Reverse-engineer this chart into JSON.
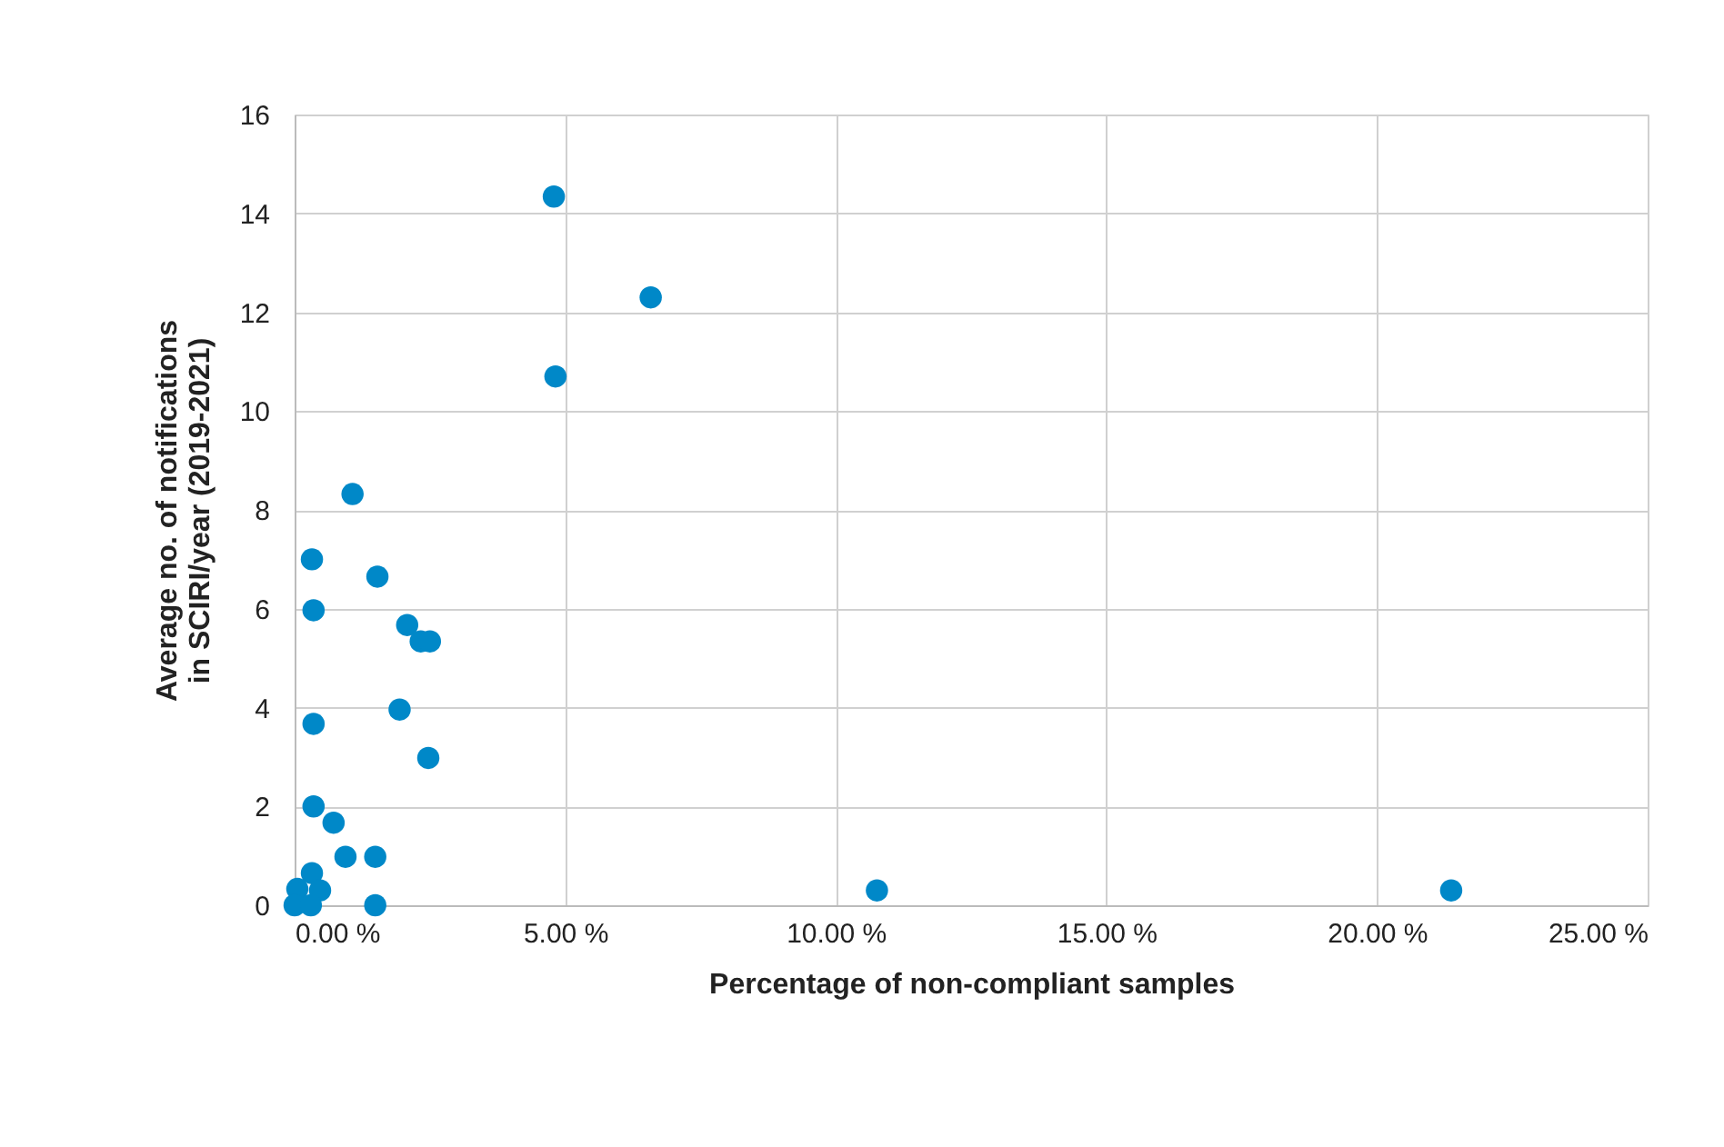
{
  "chart_data": {
    "type": "scatter",
    "xlabel": "Percentage of non-compliant samples",
    "ylabel": "Average no. of notifications in SCIRI/year (2019-2021)",
    "x": [
      4.79,
      6.58,
      4.82,
      1.07,
      0.32,
      1.53,
      0.35,
      2.08,
      2.33,
      2.5,
      1.94,
      0.35,
      2.47,
      0.35,
      0.72,
      0.94,
      1.49,
      0.32,
      0.47,
      0.05,
      0.0,
      0.3,
      1.49,
      10.76,
      21.37
    ],
    "values": [
      14.34,
      12.3,
      10.7,
      8.32,
      7.0,
      6.65,
      5.97,
      5.67,
      5.34,
      5.34,
      3.96,
      3.67,
      2.98,
      2.0,
      1.67,
      0.98,
      0.98,
      0.65,
      0.3,
      0.33,
      0.0,
      0.0,
      0.0,
      0.3,
      0.3
    ],
    "color": "#0088c8",
    "marker": "circle",
    "grid": true,
    "legend": false,
    "xlim": [
      0,
      25
    ],
    "xticks": [
      {
        "value": 0,
        "label": "0.00 %"
      },
      {
        "value": 5,
        "label": "5.00 %"
      },
      {
        "value": 10,
        "label": "10.00 %"
      },
      {
        "value": 15,
        "label": "15.00 %"
      },
      {
        "value": 20,
        "label": "20.00 %"
      },
      {
        "value": 25,
        "label": "25.00 %"
      }
    ],
    "ylim": [
      0,
      16
    ],
    "yticks": [
      0,
      2,
      4,
      6,
      8,
      10,
      12,
      14,
      16
    ]
  }
}
